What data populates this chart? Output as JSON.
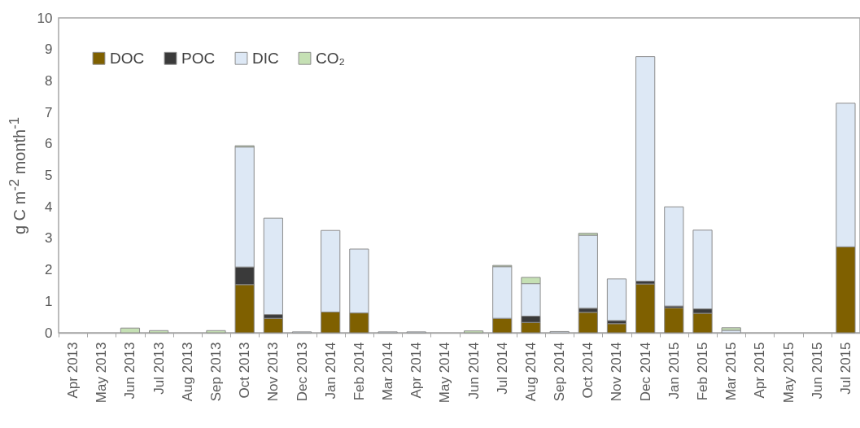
{
  "chart_data": {
    "type": "bar",
    "stacked": true,
    "ylabel": "g C m$^{-2}$ month$^{-1}$",
    "categories": [
      "Apr 2013",
      "May 2013",
      "Jun 2013",
      "Jul 2013",
      "Aug 2013",
      "Sep 2013",
      "Oct 2013",
      "Nov 2013",
      "Dec 2013",
      "Jan 2014",
      "Feb 2014",
      "Mar 2014",
      "Apr 2014",
      "May 2014",
      "Jun 2014",
      "Jul 2014",
      "Aug 2014",
      "Sep 2014",
      "Oct 2014",
      "Nov 2014",
      "Dec 2014",
      "Jan 2015",
      "Feb 2015",
      "Mar 2015",
      "Apr 2015",
      "May 2015",
      "Jun 2015",
      "Jul 2015"
    ],
    "series": [
      {
        "name": "DOC",
        "color": "#7f6000",
        "values": [
          null,
          null,
          null,
          null,
          null,
          null,
          1.53,
          0.46,
          null,
          0.66,
          0.63,
          null,
          null,
          null,
          null,
          0.46,
          0.33,
          null,
          0.65,
          0.29,
          1.55,
          0.79,
          0.62,
          null,
          null,
          null,
          null,
          2.73
        ]
      },
      {
        "name": "POC",
        "color": "#3a3a3a",
        "values": [
          null,
          null,
          null,
          null,
          null,
          null,
          0.56,
          0.12,
          null,
          null,
          null,
          null,
          null,
          null,
          null,
          null,
          0.2,
          null,
          0.13,
          0.1,
          0.09,
          0.06,
          0.14,
          null,
          null,
          null,
          null,
          null
        ]
      },
      {
        "name": "DIC",
        "color": "#dde8f5",
        "values": [
          null,
          null,
          null,
          null,
          null,
          null,
          3.81,
          3.06,
          0.03,
          2.59,
          2.03,
          0.03,
          0.03,
          null,
          null,
          1.64,
          1.03,
          0.04,
          2.32,
          1.32,
          7.13,
          3.15,
          2.5,
          0.08,
          null,
          null,
          null,
          4.56
        ]
      },
      {
        "name": "CO₂",
        "color": "#c5e0b4",
        "values": [
          null,
          null,
          0.15,
          0.07,
          null,
          0.07,
          0.04,
          null,
          null,
          null,
          null,
          null,
          null,
          null,
          0.06,
          0.04,
          0.2,
          null,
          0.06,
          null,
          null,
          null,
          null,
          0.08,
          null,
          null,
          null,
          null
        ]
      }
    ],
    "ylim": [
      0,
      10
    ],
    "yticks": [
      0,
      1,
      2,
      3,
      4,
      5,
      6,
      7,
      8,
      9,
      10
    ],
    "grid": false,
    "legend": "top left"
  }
}
